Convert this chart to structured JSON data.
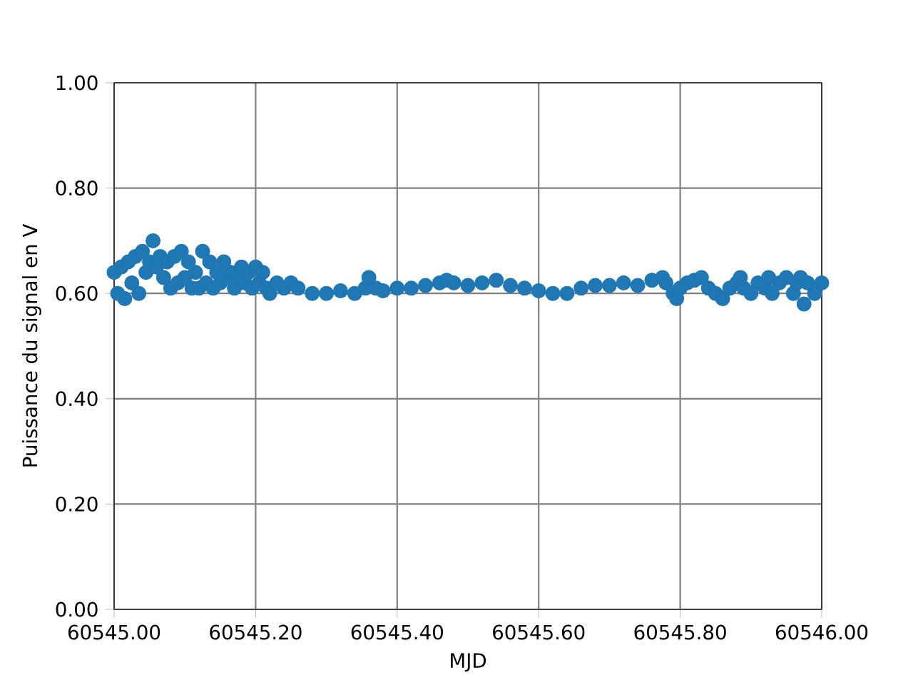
{
  "chart_data": {
    "type": "scatter",
    "xlabel": "MJD",
    "ylabel": "Puissance du signal en V",
    "x": [
      60545.0,
      60545.005,
      60545.01,
      60545.015,
      60545.02,
      60545.025,
      60545.03,
      60545.035,
      60545.04,
      60545.045,
      60545.05,
      60545.055,
      60545.06,
      60545.065,
      60545.07,
      60545.075,
      60545.08,
      60545.085,
      60545.09,
      60545.095,
      60545.1,
      60545.105,
      60545.11,
      60545.115,
      60545.12,
      60545.125,
      60545.13,
      60545.135,
      60545.14,
      60545.145,
      60545.15,
      60545.155,
      60545.16,
      60545.165,
      60545.17,
      60545.175,
      60545.18,
      60545.185,
      60545.19,
      60545.195,
      60545.2,
      60545.205,
      60545.21,
      60545.215,
      60545.22,
      60545.23,
      60545.24,
      60545.25,
      60545.26,
      60545.28,
      60545.3,
      60545.32,
      60545.34,
      60545.355,
      60545.36,
      60545.37,
      60545.38,
      60545.4,
      60545.42,
      60545.44,
      60545.46,
      60545.47,
      60545.48,
      60545.5,
      60545.52,
      60545.54,
      60545.56,
      60545.58,
      60545.6,
      60545.62,
      60545.64,
      60545.66,
      60545.68,
      60545.7,
      60545.72,
      60545.74,
      60545.76,
      60545.775,
      60545.78,
      60545.79,
      60545.795,
      60545.8,
      60545.81,
      60545.82,
      60545.83,
      60545.84,
      60545.85,
      60545.86,
      60545.87,
      60545.88,
      60545.885,
      60545.89,
      60545.9,
      60545.91,
      60545.92,
      60545.925,
      60545.93,
      60545.94,
      60545.95,
      60545.96,
      60545.965,
      60545.97,
      60545.975,
      60545.98,
      60545.99,
      60546.0
    ],
    "values": [
      0.64,
      0.6,
      0.65,
      0.59,
      0.66,
      0.62,
      0.67,
      0.6,
      0.68,
      0.64,
      0.66,
      0.7,
      0.65,
      0.67,
      0.63,
      0.66,
      0.61,
      0.67,
      0.62,
      0.68,
      0.63,
      0.66,
      0.61,
      0.64,
      0.61,
      0.68,
      0.62,
      0.66,
      0.61,
      0.64,
      0.62,
      0.66,
      0.63,
      0.64,
      0.61,
      0.63,
      0.65,
      0.62,
      0.64,
      0.61,
      0.65,
      0.62,
      0.64,
      0.61,
      0.6,
      0.62,
      0.61,
      0.62,
      0.61,
      0.6,
      0.6,
      0.605,
      0.6,
      0.61,
      0.63,
      0.61,
      0.605,
      0.61,
      0.61,
      0.615,
      0.62,
      0.625,
      0.62,
      0.615,
      0.62,
      0.625,
      0.615,
      0.61,
      0.605,
      0.6,
      0.6,
      0.61,
      0.615,
      0.615,
      0.62,
      0.615,
      0.625,
      0.63,
      0.62,
      0.6,
      0.59,
      0.61,
      0.62,
      0.625,
      0.63,
      0.61,
      0.6,
      0.59,
      0.61,
      0.62,
      0.63,
      0.61,
      0.6,
      0.62,
      0.61,
      0.63,
      0.6,
      0.62,
      0.63,
      0.6,
      0.62,
      0.63,
      0.58,
      0.62,
      0.6,
      0.62
    ],
    "color": "#1f77b4",
    "marker": "circle",
    "grid": true,
    "xlim": [
      60545.0,
      60546.0
    ],
    "ylim": [
      0.0,
      1.0
    ],
    "xticks": [
      {
        "value": 60545.0,
        "label": "60545.00"
      },
      {
        "value": 60545.2,
        "label": "60545.20"
      },
      {
        "value": 60545.4,
        "label": "60545.40"
      },
      {
        "value": 60545.6,
        "label": "60545.60"
      },
      {
        "value": 60545.8,
        "label": "60545.80"
      },
      {
        "value": 60546.0,
        "label": "60546.00"
      }
    ],
    "yticks": [
      {
        "value": 0.0,
        "label": "0.00"
      },
      {
        "value": 0.2,
        "label": "0.20"
      },
      {
        "value": 0.4,
        "label": "0.40"
      },
      {
        "value": 0.6,
        "label": "0.60"
      },
      {
        "value": 0.8,
        "label": "0.80"
      },
      {
        "value": 1.0,
        "label": "1.00"
      }
    ]
  }
}
